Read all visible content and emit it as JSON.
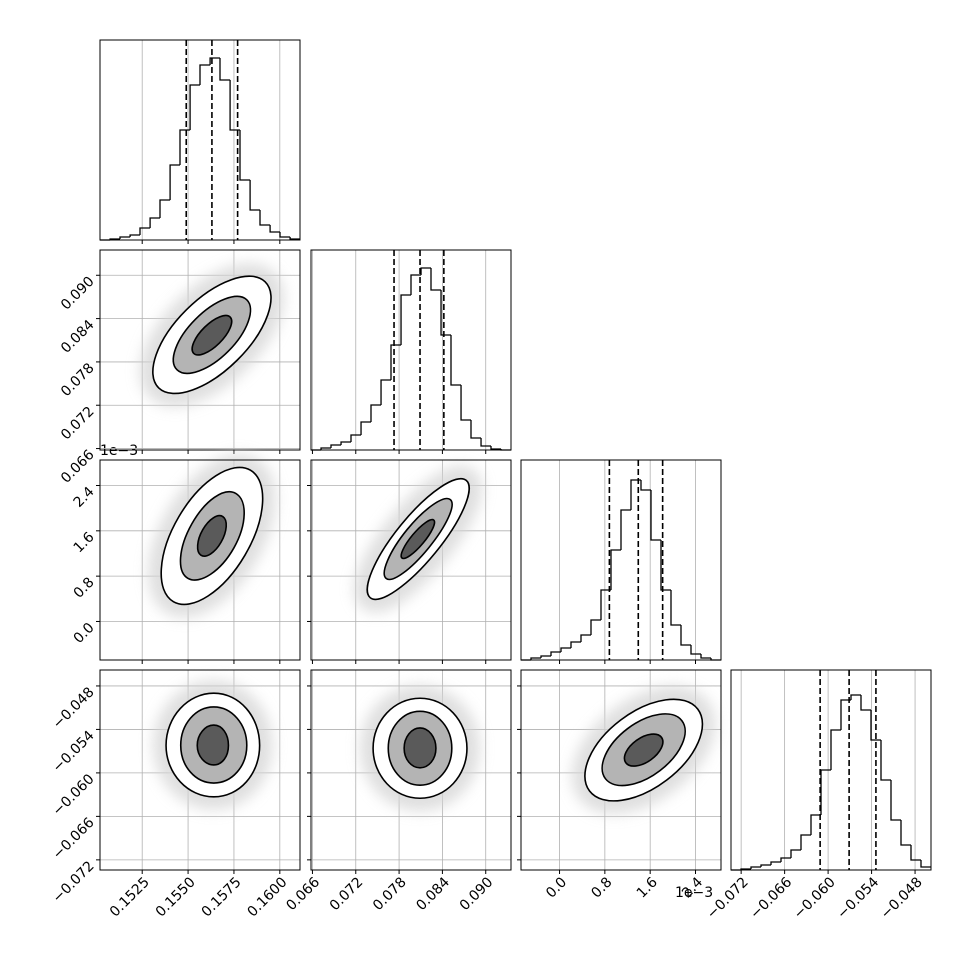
{
  "chart_data": {
    "type": "corner",
    "contour_fills": [
      "#ffffff",
      "#b4b4b4",
      "#5a5a5a"
    ],
    "grid": true,
    "params": [
      {
        "lim": [
          0.1502,
          0.1611
        ],
        "ticks": [
          0.1525,
          {
            "value": 0.155,
            "label": "0.1550"
          },
          0.1575,
          {
            "value": 0.16,
            "label": "0.1600"
          }
        ]
      },
      {
        "lim": [
          0.0658,
          0.0935
        ],
        "ticks": [
          0.066,
          0.072,
          0.078,
          0.084,
          {
            "value": 0.09,
            "label": "0.090"
          }
        ]
      },
      {
        "lim": [
          -0.68,
          2.85
        ],
        "ticks": [
          {
            "value": 0,
            "label": "0.0"
          },
          0.8,
          1.6,
          2.4
        ],
        "offset_label": "1e−3"
      },
      {
        "lim": [
          -0.0734,
          -0.0458
        ],
        "ticks": [
          {
            "value": -0.072,
            "label": "−0.072"
          },
          {
            "value": -0.066,
            "label": "−0.066"
          },
          {
            "value": -0.06,
            "label": "−0.060"
          },
          {
            "value": -0.054,
            "label": "−0.054"
          },
          {
            "value": -0.048,
            "label": "−0.048"
          }
        ]
      }
    ],
    "histograms": [
      {
        "ylim": [
          0,
          200
        ],
        "bins": [
          0.1502,
          0.15075,
          0.15129,
          0.15184,
          0.15238,
          0.15293,
          0.15347,
          0.15402,
          0.15456,
          0.15511,
          0.15565,
          0.1562,
          0.15674,
          0.15729,
          0.15783,
          0.15838,
          0.15892,
          0.15947,
          0.16001,
          0.16056,
          0.1611
        ],
        "counts": [
          0,
          1,
          3,
          5,
          12,
          22,
          40,
          75,
          110,
          155,
          175,
          182,
          160,
          110,
          60,
          30,
          15,
          8,
          3,
          1
        ],
        "quantiles": [
          0.1549,
          0.1563,
          0.1577
        ]
      },
      {
        "ylim": [
          0,
          200
        ],
        "bins": [
          0.0658,
          0.06719,
          0.06857,
          0.06996,
          0.07134,
          0.07273,
          0.07411,
          0.0755,
          0.07688,
          0.07827,
          0.07965,
          0.08104,
          0.08242,
          0.08381,
          0.08519,
          0.08658,
          0.08796,
          0.08935,
          0.09073,
          0.09212,
          0.0935
        ],
        "counts": [
          0,
          2,
          5,
          8,
          15,
          28,
          45,
          70,
          105,
          155,
          175,
          182,
          160,
          115,
          65,
          30,
          12,
          4,
          1,
          0
        ],
        "quantiles": [
          0.0773,
          0.0809,
          0.0842
        ]
      },
      {
        "ylim": [
          0,
          200
        ],
        "bins": [
          -0.68,
          -0.5035,
          -0.327,
          -0.1505,
          0.026,
          0.2025,
          0.379,
          0.5555,
          0.732,
          0.9085,
          1.085,
          1.2615,
          1.438,
          1.6145,
          1.791,
          1.9675,
          2.144,
          2.3205,
          2.497,
          2.6735,
          2.85
        ],
        "counts": [
          0,
          2,
          4,
          8,
          12,
          18,
          25,
          40,
          70,
          110,
          150,
          180,
          170,
          120,
          70,
          35,
          15,
          6,
          2,
          0
        ],
        "quantiles": [
          0.88,
          1.39,
          1.82
        ]
      },
      {
        "ylim": [
          0,
          200
        ],
        "bins": [
          -0.0734,
          -0.07202,
          -0.07064,
          -0.06926,
          -0.06788,
          -0.0665,
          -0.06512,
          -0.06374,
          -0.06236,
          -0.06098,
          -0.0596,
          -0.05822,
          -0.05684,
          -0.05546,
          -0.05408,
          -0.0527,
          -0.05132,
          -0.04994,
          -0.04856,
          -0.04718,
          -0.0458
        ],
        "counts": [
          0,
          1,
          3,
          5,
          8,
          12,
          20,
          35,
          55,
          100,
          140,
          170,
          175,
          160,
          130,
          90,
          50,
          25,
          10,
          3
        ],
        "quantiles": [
          -0.0611,
          -0.0571,
          -0.0534
        ]
      }
    ],
    "pairs": [
      [],
      [
        {
          "contours": [
            {
              "x": [
                0.1592,
                0.1577,
                0.1534,
                0.1549
              ],
              "y": [
                0.0891,
                0.0783,
                0.0744,
                0.0852
              ]
            },
            {
              "x": [
                0.1582,
                0.1572,
                0.1544,
                0.1554
              ],
              "y": [
                0.0866,
                0.0795,
                0.0769,
                0.0839
              ]
            },
            {
              "x": [
                0.1573,
                0.1567,
                0.1553,
                0.1559
              ],
              "y": [
                0.0842,
                0.0806,
                0.0792,
                0.0828
              ]
            }
          ]
        }
      ],
      [
        {
          "contours": [
            {
              "x": [
                0.1584,
                0.1581,
                0.1542,
                0.1545
              ],
              "y": [
                2.67,
                1.17,
                0.35,
                1.85
              ]
            },
            {
              "x": [
                0.1576,
                0.1575,
                0.155,
                0.1552
              ],
              "y": [
                2.26,
                1.3,
                0.76,
                1.72
              ]
            },
            {
              "x": [
                0.1569,
                0.1568,
                0.1557,
                0.1558
              ],
              "y": [
                1.85,
                1.4,
                1.17,
                1.62
              ]
            }
          ]
        },
        {
          "contours": [
            {
              "x": [
                0.0873,
                0.083,
                0.074,
                0.0783
              ],
              "y": [
                2.49,
                1.21,
                0.42,
                1.71
              ]
            },
            {
              "x": [
                0.0851,
                0.0821,
                0.0762,
                0.0791
              ],
              "y": [
                2.15,
                1.3,
                0.76,
                1.62
              ]
            },
            {
              "x": [
                0.0828,
                0.0813,
                0.0784,
                0.0799
              ],
              "y": [
                1.79,
                1.38,
                1.12,
                1.53
              ]
            }
          ]
        }
      ],
      [
        {
          "contours": [
            {
              "x": [
                0.1564,
                0.1589,
                0.1564,
                0.1538
              ],
              "y": [
                -0.049,
                -0.0562,
                -0.0633,
                -0.0562
              ]
            },
            {
              "x": [
                0.1564,
                0.1582,
                0.1564,
                0.1546
              ],
              "y": [
                -0.0509,
                -0.0562,
                -0.0614,
                -0.0562
              ]
            },
            {
              "x": [
                0.1564,
                0.1572,
                0.1564,
                0.1555
              ],
              "y": [
                -0.0534,
                -0.0562,
                -0.0589,
                -0.0562
              ]
            }
          ]
        },
        {
          "contours": [
            {
              "x": [
                0.0809,
                0.0874,
                0.0809,
                0.0744
              ],
              "y": [
                -0.0497,
                -0.0566,
                -0.0635,
                -0.0566
              ]
            },
            {
              "x": [
                0.0809,
                0.0853,
                0.0809,
                0.0765
              ],
              "y": [
                -0.0515,
                -0.0566,
                -0.0617,
                -0.0566
              ]
            },
            {
              "x": [
                0.0809,
                0.0831,
                0.0809,
                0.0787
              ],
              "y": [
                -0.0538,
                -0.0566,
                -0.0593,
                -0.0566
              ]
            }
          ]
        },
        {
          "contours": [
            {
              "x": [
                2.44,
                1.89,
                0.53,
                1.08
              ],
              "y": [
                -0.0512,
                -0.061,
                -0.0625,
                -0.0527
              ]
            },
            {
              "x": [
                2.16,
                1.77,
                0.81,
                1.2
              ],
              "y": [
                -0.0528,
                -0.0597,
                -0.0608,
                -0.0539
              ]
            },
            {
              "x": [
                1.8,
                1.61,
                1.17,
                1.36
              ],
              "y": [
                -0.0551,
                -0.0582,
                -0.0586,
                -0.0555
              ]
            }
          ]
        }
      ]
    ]
  }
}
